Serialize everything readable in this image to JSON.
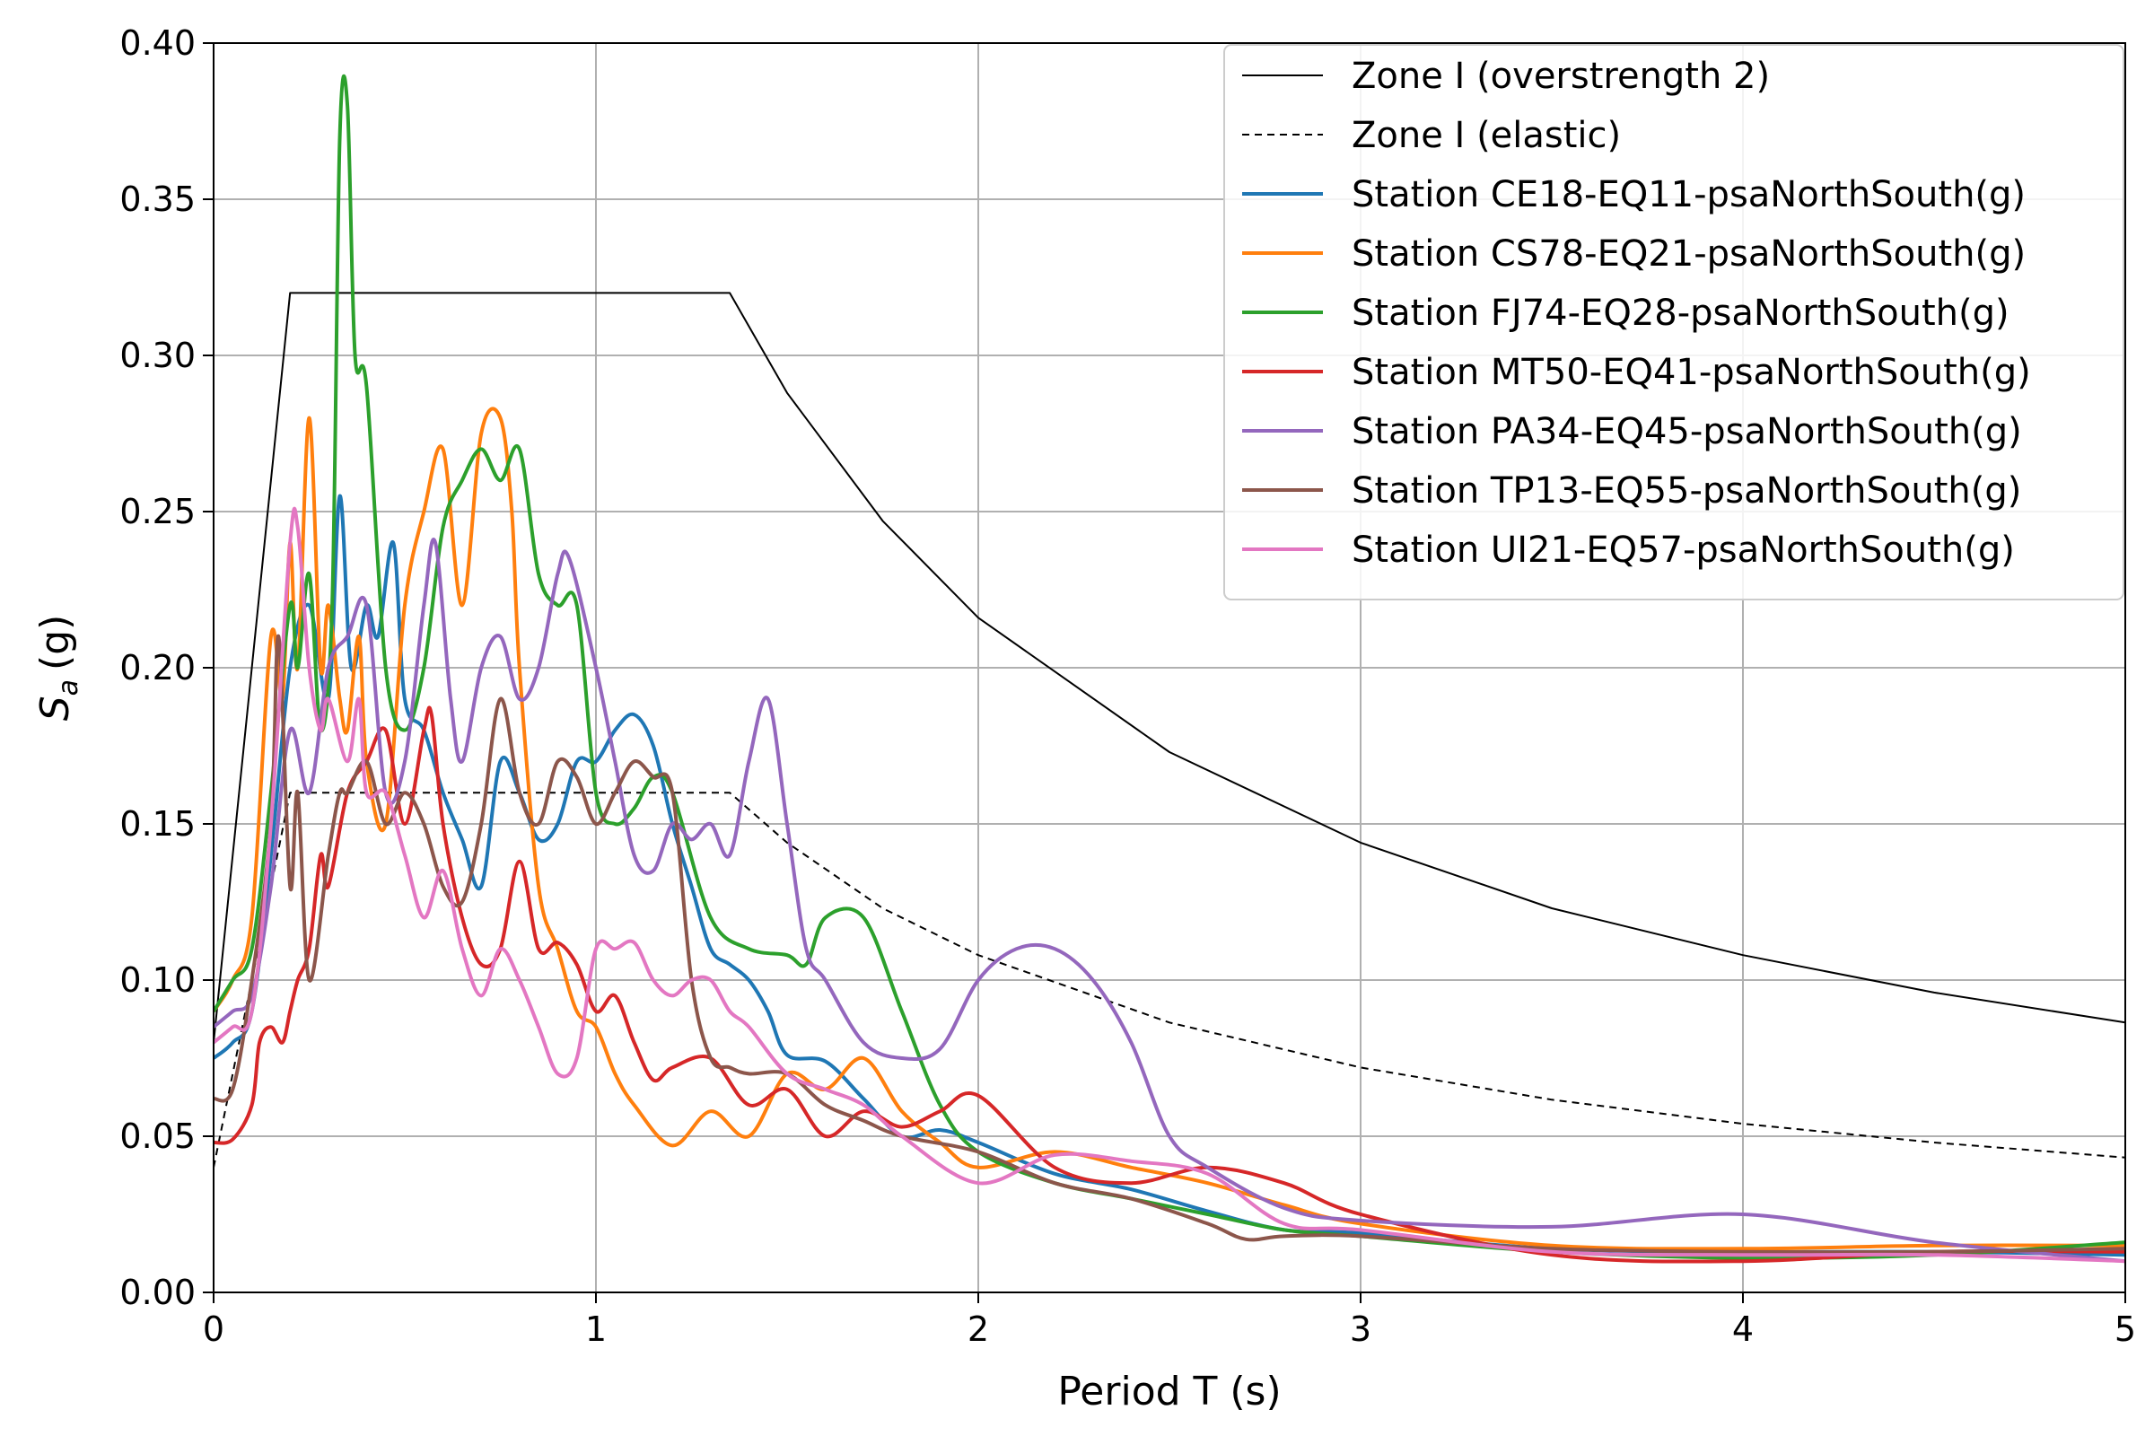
{
  "chart_data": {
    "type": "line",
    "title": "",
    "xlabel": "Period T (s)",
    "ylabel_main": "S",
    "ylabel_sub": "a",
    "ylabel_unit": "(g)",
    "xlim": [
      0,
      5
    ],
    "ylim": [
      0,
      0.4
    ],
    "xticks": [
      0,
      1,
      2,
      3,
      4,
      5
    ],
    "xtick_labels": [
      "0",
      "1",
      "2",
      "3",
      "4",
      "5"
    ],
    "yticks": [
      0,
      0.05,
      0.1,
      0.15,
      0.2,
      0.25,
      0.3,
      0.35,
      0.4
    ],
    "ytick_labels": [
      "0.00",
      "0.05",
      "0.10",
      "0.15",
      "0.20",
      "0.25",
      "0.30",
      "0.35",
      "0.40"
    ],
    "grid": true,
    "legend_position": "top-right",
    "series": [
      {
        "name": "Zone I (overstrength 2)",
        "color": "#000000",
        "style": "solid",
        "width": 2,
        "x": [
          0,
          0.2,
          1.35,
          1.5,
          1.75,
          2.0,
          2.5,
          3.0,
          3.5,
          4.0,
          4.5,
          5.0
        ],
        "y": [
          0.08,
          0.32,
          0.32,
          0.288,
          0.247,
          0.216,
          0.173,
          0.144,
          0.123,
          0.108,
          0.096,
          0.0864
        ]
      },
      {
        "name": "Zone I (elastic)",
        "color": "#000000",
        "style": "dashed",
        "width": 2,
        "x": [
          0,
          0.2,
          1.35,
          1.5,
          1.75,
          2.0,
          2.5,
          3.0,
          3.5,
          4.0,
          4.5,
          5.0
        ],
        "y": [
          0.04,
          0.16,
          0.16,
          0.144,
          0.123,
          0.108,
          0.0864,
          0.072,
          0.0617,
          0.054,
          0.048,
          0.0432
        ]
      },
      {
        "name": "Station CE18-EQ11-psaNorthSouth(g)",
        "color": "#1f77b4",
        "style": "solid",
        "width": 4,
        "x": [
          0,
          0.05,
          0.1,
          0.15,
          0.2,
          0.25,
          0.3,
          0.33,
          0.36,
          0.4,
          0.43,
          0.47,
          0.5,
          0.55,
          0.6,
          0.65,
          0.7,
          0.75,
          0.8,
          0.85,
          0.9,
          0.95,
          1.0,
          1.05,
          1.1,
          1.15,
          1.2,
          1.25,
          1.3,
          1.35,
          1.4,
          1.45,
          1.5,
          1.6,
          1.7,
          1.8,
          1.9,
          2.0,
          2.2,
          2.4,
          2.6,
          2.8,
          3.0,
          3.5,
          4.0,
          4.5,
          5.0
        ],
        "y": [
          0.075,
          0.08,
          0.09,
          0.14,
          0.2,
          0.22,
          0.19,
          0.255,
          0.2,
          0.22,
          0.21,
          0.24,
          0.19,
          0.18,
          0.16,
          0.145,
          0.13,
          0.17,
          0.16,
          0.145,
          0.15,
          0.17,
          0.17,
          0.18,
          0.185,
          0.175,
          0.15,
          0.13,
          0.11,
          0.105,
          0.1,
          0.09,
          0.076,
          0.074,
          0.062,
          0.05,
          0.052,
          0.048,
          0.038,
          0.033,
          0.026,
          0.02,
          0.019,
          0.014,
          0.013,
          0.013,
          0.012
        ]
      },
      {
        "name": "Station CS78-EQ21-psaNorthSouth(g)",
        "color": "#ff7f0e",
        "style": "solid",
        "width": 4,
        "x": [
          0,
          0.05,
          0.1,
          0.15,
          0.18,
          0.2,
          0.22,
          0.25,
          0.28,
          0.3,
          0.33,
          0.35,
          0.38,
          0.4,
          0.45,
          0.5,
          0.55,
          0.6,
          0.65,
          0.7,
          0.75,
          0.78,
          0.8,
          0.85,
          0.9,
          0.95,
          1.0,
          1.05,
          1.1,
          1.2,
          1.3,
          1.4,
          1.5,
          1.6,
          1.7,
          1.8,
          1.9,
          2.0,
          2.2,
          2.4,
          2.6,
          2.8,
          3.0,
          3.5,
          4.0,
          4.5,
          5.0
        ],
        "y": [
          0.09,
          0.1,
          0.12,
          0.21,
          0.19,
          0.24,
          0.2,
          0.28,
          0.2,
          0.22,
          0.19,
          0.18,
          0.21,
          0.17,
          0.15,
          0.22,
          0.25,
          0.27,
          0.22,
          0.275,
          0.28,
          0.25,
          0.2,
          0.13,
          0.11,
          0.09,
          0.085,
          0.07,
          0.06,
          0.047,
          0.058,
          0.05,
          0.07,
          0.065,
          0.075,
          0.058,
          0.048,
          0.04,
          0.045,
          0.04,
          0.035,
          0.028,
          0.022,
          0.015,
          0.014,
          0.015,
          0.015
        ]
      },
      {
        "name": "Station FJ74-EQ28-psaNorthSouth(g)",
        "color": "#2ca02c",
        "style": "solid",
        "width": 4,
        "x": [
          0,
          0.05,
          0.1,
          0.15,
          0.2,
          0.22,
          0.25,
          0.28,
          0.31,
          0.33,
          0.35,
          0.37,
          0.4,
          0.45,
          0.5,
          0.55,
          0.6,
          0.65,
          0.7,
          0.75,
          0.8,
          0.85,
          0.9,
          0.95,
          1.0,
          1.05,
          1.1,
          1.15,
          1.2,
          1.3,
          1.4,
          1.5,
          1.55,
          1.6,
          1.7,
          1.8,
          1.9,
          2.0,
          2.2,
          2.4,
          2.6,
          2.8,
          3.0,
          3.5,
          4.0,
          4.5,
          5.0
        ],
        "y": [
          0.09,
          0.1,
          0.11,
          0.16,
          0.22,
          0.2,
          0.23,
          0.18,
          0.22,
          0.37,
          0.38,
          0.3,
          0.29,
          0.2,
          0.18,
          0.2,
          0.245,
          0.26,
          0.27,
          0.26,
          0.27,
          0.23,
          0.22,
          0.22,
          0.16,
          0.15,
          0.155,
          0.165,
          0.16,
          0.12,
          0.11,
          0.108,
          0.105,
          0.12,
          0.12,
          0.09,
          0.06,
          0.045,
          0.035,
          0.03,
          0.025,
          0.02,
          0.018,
          0.013,
          0.011,
          0.012,
          0.016
        ]
      },
      {
        "name": "Station MT50-EQ41-psaNorthSouth(g)",
        "color": "#d62728",
        "style": "solid",
        "width": 4,
        "x": [
          0,
          0.05,
          0.1,
          0.12,
          0.15,
          0.18,
          0.2,
          0.22,
          0.25,
          0.28,
          0.3,
          0.35,
          0.4,
          0.45,
          0.5,
          0.55,
          0.57,
          0.6,
          0.65,
          0.7,
          0.75,
          0.8,
          0.85,
          0.9,
          0.95,
          1.0,
          1.05,
          1.1,
          1.15,
          1.2,
          1.3,
          1.4,
          1.5,
          1.6,
          1.7,
          1.8,
          1.9,
          2.0,
          2.2,
          2.4,
          2.6,
          2.8,
          3.0,
          3.5,
          4.0,
          4.5,
          5.0
        ],
        "y": [
          0.048,
          0.049,
          0.06,
          0.08,
          0.085,
          0.08,
          0.09,
          0.1,
          0.11,
          0.14,
          0.13,
          0.16,
          0.17,
          0.18,
          0.15,
          0.18,
          0.185,
          0.15,
          0.12,
          0.105,
          0.11,
          0.138,
          0.11,
          0.112,
          0.105,
          0.09,
          0.095,
          0.08,
          0.068,
          0.072,
          0.075,
          0.06,
          0.065,
          0.05,
          0.058,
          0.053,
          0.058,
          0.063,
          0.04,
          0.035,
          0.04,
          0.035,
          0.025,
          0.012,
          0.01,
          0.013,
          0.013
        ]
      },
      {
        "name": "Station PA34-EQ45-psaNorthSouth(g)",
        "color": "#9467bd",
        "style": "solid",
        "width": 4,
        "x": [
          0,
          0.05,
          0.1,
          0.15,
          0.2,
          0.25,
          0.3,
          0.35,
          0.4,
          0.45,
          0.5,
          0.55,
          0.58,
          0.62,
          0.65,
          0.7,
          0.75,
          0.8,
          0.85,
          0.9,
          0.93,
          1.0,
          1.05,
          1.1,
          1.15,
          1.2,
          1.25,
          1.3,
          1.35,
          1.4,
          1.45,
          1.5,
          1.55,
          1.6,
          1.7,
          1.8,
          1.9,
          2.0,
          2.1,
          2.2,
          2.3,
          2.4,
          2.5,
          2.6,
          2.8,
          3.0,
          3.5,
          4.0,
          4.5,
          5.0
        ],
        "y": [
          0.085,
          0.09,
          0.095,
          0.13,
          0.18,
          0.16,
          0.2,
          0.21,
          0.22,
          0.16,
          0.17,
          0.22,
          0.24,
          0.19,
          0.17,
          0.2,
          0.21,
          0.19,
          0.2,
          0.23,
          0.235,
          0.2,
          0.17,
          0.14,
          0.135,
          0.15,
          0.145,
          0.15,
          0.14,
          0.17,
          0.19,
          0.15,
          0.11,
          0.1,
          0.08,
          0.075,
          0.078,
          0.1,
          0.11,
          0.11,
          0.1,
          0.08,
          0.05,
          0.04,
          0.027,
          0.023,
          0.021,
          0.025,
          0.016,
          0.01
        ]
      },
      {
        "name": "Station TP13-EQ55-psaNorthSouth(g)",
        "color": "#8c564b",
        "style": "solid",
        "width": 4,
        "x": [
          0,
          0.05,
          0.1,
          0.15,
          0.17,
          0.2,
          0.22,
          0.25,
          0.3,
          0.33,
          0.35,
          0.4,
          0.45,
          0.5,
          0.55,
          0.6,
          0.65,
          0.7,
          0.75,
          0.8,
          0.85,
          0.9,
          0.95,
          1.0,
          1.05,
          1.1,
          1.15,
          1.2,
          1.25,
          1.3,
          1.35,
          1.4,
          1.5,
          1.6,
          1.7,
          1.8,
          2.0,
          2.2,
          2.4,
          2.6,
          2.7,
          2.8,
          3.0,
          3.5,
          4.0,
          4.5,
          5.0
        ],
        "y": [
          0.062,
          0.065,
          0.1,
          0.15,
          0.21,
          0.13,
          0.16,
          0.1,
          0.14,
          0.16,
          0.16,
          0.17,
          0.15,
          0.16,
          0.15,
          0.13,
          0.125,
          0.15,
          0.19,
          0.16,
          0.15,
          0.17,
          0.165,
          0.15,
          0.16,
          0.17,
          0.165,
          0.16,
          0.1,
          0.075,
          0.072,
          0.07,
          0.07,
          0.06,
          0.055,
          0.05,
          0.045,
          0.035,
          0.03,
          0.022,
          0.017,
          0.018,
          0.018,
          0.014,
          0.013,
          0.013,
          0.014
        ]
      },
      {
        "name": "Station UI21-EQ57-psaNorthSouth(g)",
        "color": "#e377c2",
        "style": "solid",
        "width": 4,
        "x": [
          0,
          0.05,
          0.1,
          0.15,
          0.2,
          0.22,
          0.25,
          0.28,
          0.3,
          0.35,
          0.38,
          0.4,
          0.45,
          0.5,
          0.55,
          0.6,
          0.65,
          0.7,
          0.75,
          0.8,
          0.85,
          0.9,
          0.95,
          1.0,
          1.05,
          1.1,
          1.15,
          1.2,
          1.25,
          1.3,
          1.35,
          1.4,
          1.5,
          1.6,
          1.7,
          1.8,
          2.0,
          2.2,
          2.4,
          2.6,
          2.8,
          3.0,
          3.5,
          4.0,
          4.5,
          5.0
        ],
        "y": [
          0.08,
          0.085,
          0.09,
          0.15,
          0.24,
          0.245,
          0.2,
          0.18,
          0.19,
          0.17,
          0.19,
          0.16,
          0.16,
          0.14,
          0.12,
          0.135,
          0.11,
          0.095,
          0.11,
          0.1,
          0.085,
          0.07,
          0.075,
          0.11,
          0.11,
          0.112,
          0.1,
          0.095,
          0.1,
          0.1,
          0.09,
          0.085,
          0.07,
          0.065,
          0.06,
          0.05,
          0.035,
          0.044,
          0.042,
          0.038,
          0.022,
          0.02,
          0.013,
          0.012,
          0.012,
          0.01
        ]
      }
    ]
  }
}
